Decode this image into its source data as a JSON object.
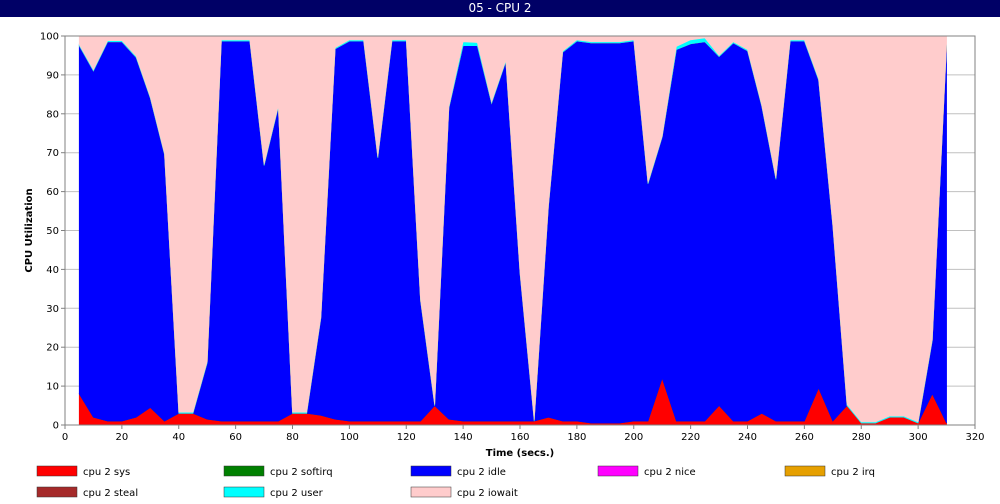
{
  "window": {
    "title": "05 - CPU 2"
  },
  "chart_data": {
    "type": "area",
    "stacked": true,
    "title": "",
    "xlabel": "Time (secs.)",
    "ylabel": "CPU Utilization",
    "xlim": [
      0,
      320
    ],
    "ylim": [
      0,
      100
    ],
    "x_ticks": [
      0,
      20,
      40,
      60,
      80,
      100,
      120,
      140,
      160,
      180,
      200,
      220,
      240,
      260,
      280,
      300,
      320
    ],
    "y_ticks": [
      0,
      10,
      20,
      30,
      40,
      50,
      60,
      70,
      80,
      90,
      100
    ],
    "grid": true,
    "legend_position": "bottom",
    "x": [
      5,
      10,
      15,
      20,
      25,
      30,
      35,
      40,
      45,
      50,
      55,
      60,
      65,
      70,
      75,
      80,
      85,
      90,
      95,
      100,
      105,
      110,
      115,
      120,
      125,
      130,
      135,
      140,
      145,
      150,
      155,
      160,
      165,
      170,
      175,
      180,
      185,
      190,
      195,
      200,
      205,
      210,
      215,
      220,
      225,
      230,
      235,
      240,
      245,
      250,
      255,
      260,
      265,
      270,
      275,
      280,
      285,
      290,
      295,
      300,
      305,
      310
    ],
    "series": [
      {
        "name": "cpu 2 sys",
        "color": "#ff0000",
        "values": [
          8,
          2,
          1,
          1,
          2,
          4.5,
          1,
          3,
          3,
          1.5,
          1,
          1,
          1,
          1,
          1,
          3,
          3,
          2.5,
          1.5,
          1,
          1,
          1,
          1,
          1,
          1,
          5,
          1.5,
          1,
          1,
          1,
          1,
          1,
          1,
          2,
          1,
          1,
          0.5,
          0.5,
          0.5,
          1,
          1,
          12,
          1,
          1,
          1,
          5,
          1,
          1,
          3,
          1,
          1,
          1,
          9.5,
          1,
          5,
          0.5,
          0.5,
          2,
          2,
          0.5,
          8,
          0.5
        ]
      },
      {
        "name": "cpu 2 softirq",
        "color": "#008000",
        "values": [
          0,
          0,
          0,
          0,
          0,
          0,
          0,
          0,
          0,
          0,
          0,
          0,
          0,
          0,
          0,
          0,
          0,
          0,
          0,
          0,
          0,
          0,
          0,
          0,
          0,
          0,
          0,
          0,
          0,
          0,
          0,
          0,
          0,
          0,
          0,
          0,
          0,
          0,
          0,
          0,
          0,
          0,
          0,
          0,
          0,
          0,
          0,
          0,
          0,
          0,
          0,
          0,
          0,
          0,
          0,
          0,
          0,
          0,
          0,
          0,
          0,
          0
        ]
      },
      {
        "name": "cpu 2 idle",
        "color": "#0000ff",
        "values": [
          89.5,
          89,
          97.5,
          97.5,
          92.5,
          79.5,
          68.5,
          0,
          0,
          14.5,
          97.7,
          97.7,
          97.7,
          65.7,
          80.7,
          0,
          0,
          25,
          95.2,
          97.7,
          97.7,
          67.7,
          97.7,
          97.7,
          31,
          0,
          80,
          96.5,
          96.5,
          81.7,
          92.4,
          38,
          0,
          54,
          94.8,
          97.7,
          97.7,
          97.7,
          97.7,
          97.7,
          61,
          62,
          95.5,
          97,
          97.5,
          89.7,
          97.2,
          95.2,
          79,
          62.2,
          97.7,
          97.7,
          79.2,
          50.2,
          0,
          0,
          0,
          0,
          0,
          0,
          13.7,
          97
        ]
      },
      {
        "name": "cpu 2 nice",
        "color": "#ff00ff",
        "values": [
          0,
          0,
          0,
          0,
          0,
          0,
          0,
          0,
          0,
          0,
          0,
          0,
          0,
          0,
          0,
          0,
          0,
          0,
          0,
          0,
          0,
          0,
          0,
          0,
          0,
          0,
          0,
          0,
          0,
          0,
          0,
          0,
          0,
          0,
          0,
          0,
          0,
          0,
          0,
          0,
          0,
          0,
          0,
          0,
          0,
          0,
          0,
          0,
          0,
          0,
          0,
          0,
          0,
          0,
          0,
          0,
          0,
          0,
          0,
          0,
          0,
          0
        ]
      },
      {
        "name": "cpu 2 irq",
        "color": "#e6a000",
        "values": [
          0,
          0,
          0,
          0,
          0,
          0,
          0,
          0,
          0,
          0,
          0,
          0,
          0,
          0,
          0,
          0,
          0,
          0,
          0,
          0,
          0,
          0,
          0,
          0,
          0,
          0,
          0,
          0,
          0,
          0,
          0,
          0,
          0,
          0,
          0,
          0,
          0,
          0,
          0,
          0,
          0,
          0,
          0,
          0,
          0,
          0,
          0,
          0,
          0,
          0,
          0,
          0,
          0,
          0,
          0,
          0,
          0,
          0,
          0,
          0,
          0,
          0
        ]
      },
      {
        "name": "cpu 2 steal",
        "color": "#a52a2a",
        "values": [
          0,
          0,
          0,
          0,
          0,
          0,
          0,
          0,
          0,
          0,
          0,
          0,
          0,
          0,
          0,
          0,
          0,
          0,
          0,
          0,
          0,
          0,
          0,
          0,
          0,
          0,
          0,
          0,
          0,
          0,
          0,
          0,
          0,
          0,
          0,
          0,
          0,
          0,
          0,
          0,
          0,
          0,
          0,
          0,
          0,
          0,
          0,
          0,
          0,
          0,
          0,
          0,
          0,
          0,
          0,
          0,
          0,
          0,
          0,
          0,
          0,
          0
        ]
      },
      {
        "name": "cpu 2 user",
        "color": "#00ffff",
        "values": [
          0.3,
          0.3,
          0.3,
          0.3,
          0.3,
          0.3,
          0.3,
          0.3,
          0.3,
          0.3,
          0.3,
          0.3,
          0.3,
          0.3,
          0.3,
          0.3,
          0.3,
          0.3,
          0.3,
          0.3,
          0.3,
          0.3,
          0.3,
          0.3,
          0.3,
          0.3,
          0.3,
          1,
          0.8,
          0.3,
          0.3,
          0.3,
          0.3,
          0.3,
          0.3,
          0.3,
          0.3,
          0.3,
          0.3,
          0.3,
          0.3,
          0.3,
          0.8,
          1,
          1,
          0.3,
          0.3,
          0.3,
          0.3,
          0.3,
          0.3,
          0.3,
          0.3,
          0.3,
          0.3,
          0.3,
          0.3,
          0.3,
          0.3,
          0.3,
          0.3,
          0.3
        ]
      },
      {
        "name": "cpu 2 iowait",
        "color": "#ffcccc",
        "values": [
          2.2,
          8.7,
          1.2,
          1.2,
          5.2,
          15.7,
          30.2,
          96.7,
          96.7,
          83.7,
          1,
          1,
          1,
          33,
          18,
          96.7,
          96.7,
          72.2,
          3,
          1,
          1,
          31,
          1,
          1,
          67.7,
          94.7,
          18.2,
          1.5,
          1.7,
          17,
          6.3,
          60.7,
          98.7,
          43.7,
          3.9,
          1,
          1.5,
          1.5,
          1.5,
          1,
          37.7,
          25.7,
          2.7,
          1,
          0.5,
          5,
          1.5,
          3.5,
          17.7,
          36.5,
          1,
          1,
          11,
          48.5,
          94.7,
          99.2,
          99.2,
          97.7,
          97.7,
          99.2,
          78,
          2.2
        ]
      }
    ]
  }
}
